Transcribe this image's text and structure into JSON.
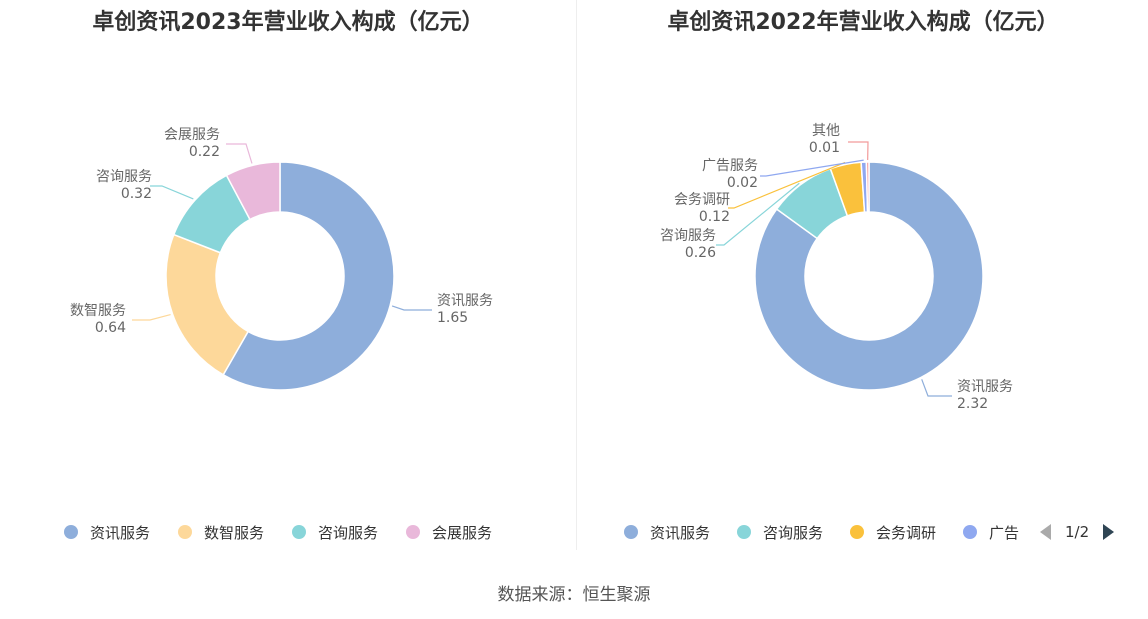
{
  "chart_data": [
    {
      "type": "pie",
      "title": "卓创资讯2023年营业收入构成（亿元）",
      "slices": [
        {
          "name": "资讯服务",
          "value": 1.65,
          "color": "#8eaedb"
        },
        {
          "name": "数智服务",
          "value": 0.64,
          "color": "#fdd89a"
        },
        {
          "name": "咨询服务",
          "value": 0.32,
          "color": "#88d5d9"
        },
        {
          "name": "会展服务",
          "value": 0.22,
          "color": "#e9b8da"
        }
      ],
      "legend": [
        "资讯服务",
        "数智服务",
        "咨询服务",
        "会展服务"
      ],
      "legend_placement": "bottom"
    },
    {
      "type": "pie",
      "title": "卓创资讯2022年营业收入构成（亿元）",
      "slices": [
        {
          "name": "资讯服务",
          "value": 2.32,
          "color": "#8eaedb"
        },
        {
          "name": "咨询服务",
          "value": 0.26,
          "color": "#88d5d9"
        },
        {
          "name": "会务调研",
          "value": 0.12,
          "color": "#fac13c"
        },
        {
          "name": "广告服务",
          "value": 0.02,
          "color": "#8fa8f0"
        },
        {
          "name": "其他",
          "value": 0.01,
          "color": "#f29a9a"
        }
      ],
      "legend": [
        "资讯服务",
        "咨询服务",
        "会务调研",
        "广告"
      ],
      "legend_placement": "bottom",
      "legend_page": "1/2"
    }
  ],
  "source": "数据来源：恒生聚源"
}
